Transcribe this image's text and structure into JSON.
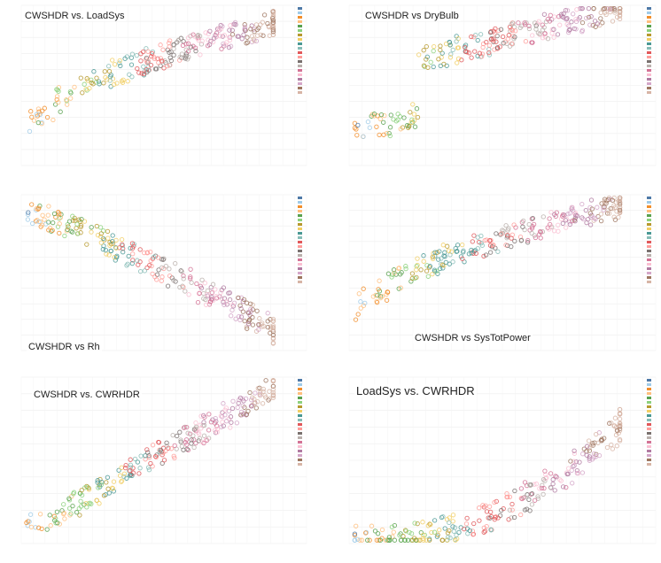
{
  "chart_data": [
    {
      "type": "scatter",
      "title": "CWSHDR vs. LoadSys",
      "points": 270,
      "seed": 11,
      "theme": "loadsys"
    },
    {
      "type": "scatter",
      "title": "CWSHDR vs DryBulb",
      "points": 270,
      "seed": 23,
      "theme": "drybulb"
    },
    {
      "type": "scatter",
      "title": "CWSHDR vs Rh",
      "points": 270,
      "seed": 37,
      "theme": "rh"
    },
    {
      "type": "scatter",
      "title": "CWSHDR vs SysTotPower",
      "points": 270,
      "seed": 41,
      "theme": "power"
    },
    {
      "type": "scatter",
      "title": "CWSHDR vs. CWRHDR",
      "points": 270,
      "seed": 53,
      "theme": "cwrhdr"
    },
    {
      "type": "scatter",
      "title": "LoadSys vs. CWRHDR",
      "points": 270,
      "seed": 67,
      "theme": "loadcwr"
    }
  ],
  "palette": [
    "#4e79a7",
    "#a0cbe8",
    "#f28e2b",
    "#ffbe7d",
    "#59a14f",
    "#8cd17d",
    "#b6992d",
    "#f1ce63",
    "#499894",
    "#86bcb6",
    "#e15759",
    "#ff9d9a",
    "#79706e",
    "#bab0ac",
    "#d37295",
    "#fabfd2",
    "#b07aa1",
    "#d4a6c8",
    "#9d7660",
    "#d7b5a6"
  ]
}
